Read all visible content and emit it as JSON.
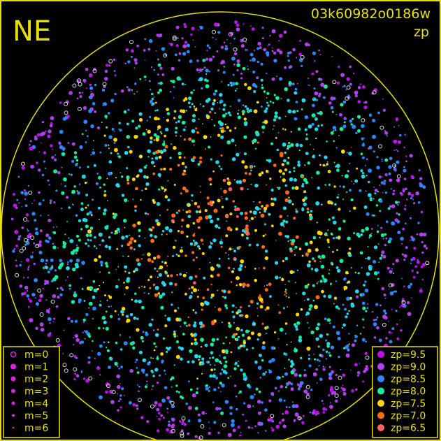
{
  "chart_data": {
    "type": "scatter",
    "title": "03k60982o0186w",
    "subtitle": "zp",
    "corner_label": "NE",
    "frame_color": "#e8e000",
    "background": "#000000",
    "size_legend": {
      "position": "bottom-left",
      "entries": [
        {
          "label": "m=0",
          "marker": "ring"
        },
        {
          "label": "m=1",
          "marker": "dot"
        },
        {
          "label": "m=2",
          "marker": "dot"
        },
        {
          "label": "m=3",
          "marker": "dot"
        },
        {
          "label": "m=4",
          "marker": "dot"
        },
        {
          "label": "m=5",
          "marker": "dot"
        },
        {
          "label": "m=6",
          "marker": "dot"
        }
      ]
    },
    "color_legend": {
      "position": "bottom-right",
      "entries": [
        {
          "label": "zp=9.5",
          "zp": 9.5,
          "color": "#c010f0"
        },
        {
          "label": "zp=9.0",
          "zp": 9.0,
          "color": "#b040f0"
        },
        {
          "label": "zp=8.5",
          "zp": 8.5,
          "color": "#2888ff"
        },
        {
          "label": "zp=8.0",
          "zp": 8.0,
          "color": "#10f0a0"
        },
        {
          "label": "zp=7.5",
          "zp": 7.5,
          "color": "#ffd800"
        },
        {
          "label": "zp=7.0",
          "zp": 7.0,
          "color": "#ff6a10"
        },
        {
          "label": "zp=6.5",
          "zp": 6.5,
          "color": "#ff6060"
        }
      ]
    },
    "grid": false
  }
}
